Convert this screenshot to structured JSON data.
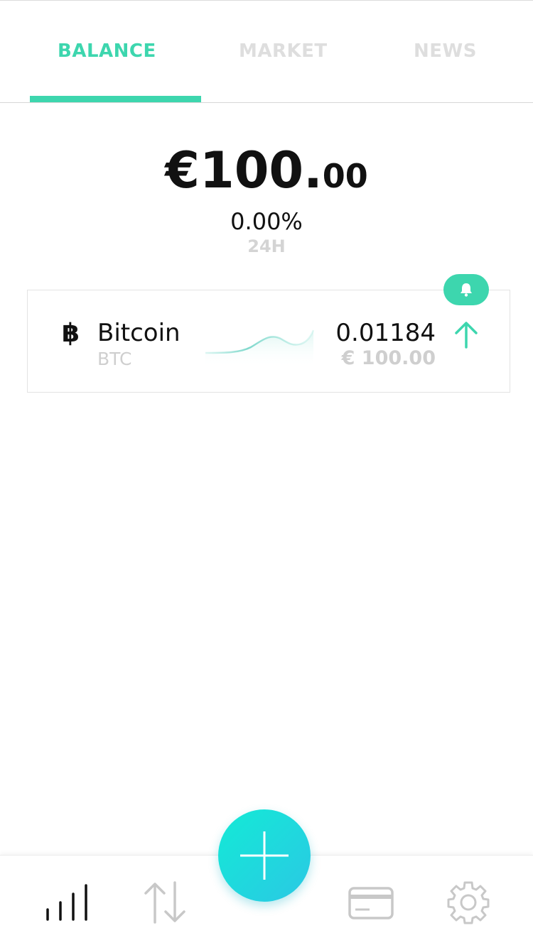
{
  "tabs": [
    {
      "label": "BALANCE",
      "active": true
    },
    {
      "label": "MARKET",
      "active": false
    },
    {
      "label": "NEWS",
      "active": false
    }
  ],
  "balance": {
    "currency_symbol": "€",
    "amount_integer": "100.",
    "amount_decimals": "00",
    "change_percent": "0.00%",
    "period": "24H"
  },
  "asset": {
    "icon": "bitcoin-icon",
    "icon_glyph": "฿",
    "name": "Bitcoin",
    "symbol": "BTC",
    "amount": "0.01184",
    "fiat_value": "€ 100.00",
    "trend_icon": "arrow-up-icon",
    "alert_icon": "bell-icon"
  },
  "bottom_nav": [
    {
      "icon": "bar-chart-icon",
      "active": true
    },
    {
      "icon": "transfer-arrows-icon",
      "active": false
    },
    {
      "icon": "plus-icon",
      "active": false
    },
    {
      "icon": "credit-card-icon",
      "active": false
    },
    {
      "icon": "gear-icon",
      "active": false
    }
  ],
  "colors": {
    "accent": "#3dd6ae",
    "fab_gradient_start": "#13ead6",
    "fab_gradient_end": "#2bc8e4",
    "muted_text": "#cfcfcf",
    "inactive_tab": "#dedede",
    "active_nav_icon": "#111111",
    "inactive_nav_icon": "#c8c8c8"
  }
}
